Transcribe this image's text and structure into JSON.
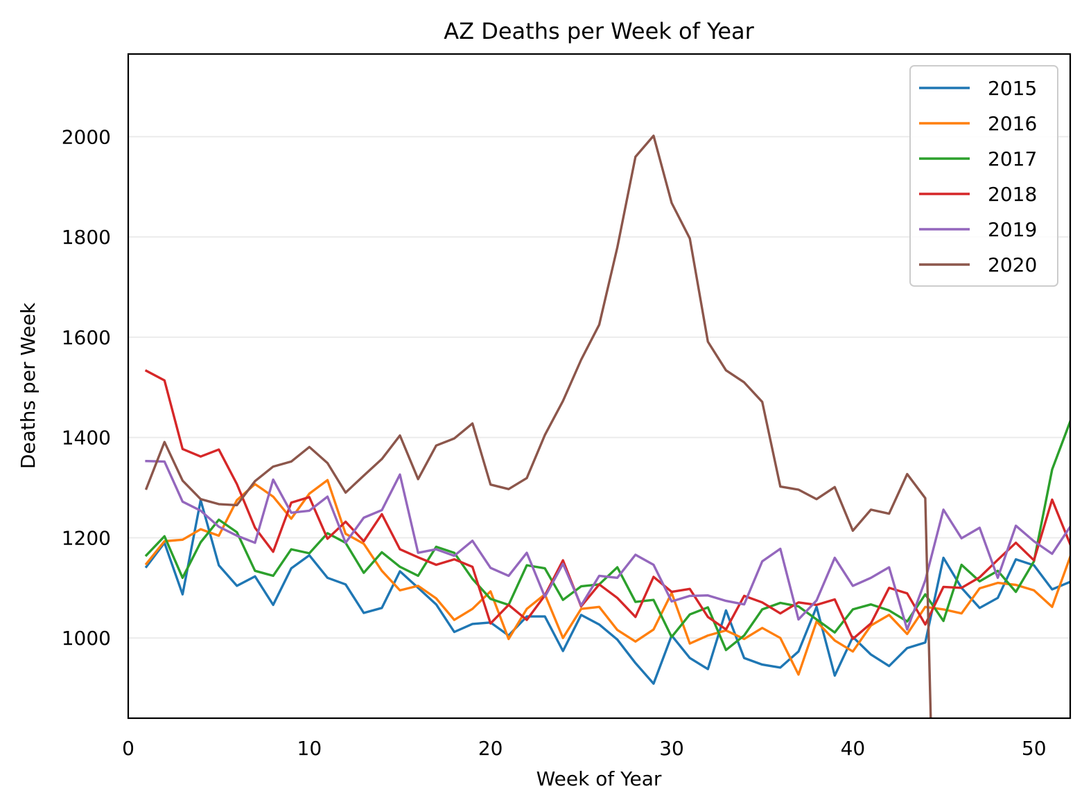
{
  "chart_data": {
    "type": "line",
    "title": "AZ Deaths per Week of Year",
    "xlabel": "Week of Year",
    "ylabel": "Deaths per Week",
    "xlim": [
      0,
      52
    ],
    "ylim": [
      840,
      2165
    ],
    "xticks": [
      0,
      10,
      20,
      30,
      40,
      50
    ],
    "yticks": [
      1000,
      1200,
      1400,
      1600,
      1800,
      2000
    ],
    "grid": "horizontal",
    "legend_position": "top-right",
    "series": [
      {
        "name": "2015",
        "color": "#1f77b4",
        "x": [
          1,
          2,
          3,
          4,
          5,
          6,
          7,
          8,
          9,
          10,
          11,
          12,
          13,
          14,
          15,
          16,
          17,
          18,
          19,
          20,
          21,
          22,
          23,
          24,
          25,
          26,
          27,
          28,
          29,
          30,
          31,
          32,
          33,
          34,
          35,
          36,
          37,
          38,
          39,
          40,
          41,
          42,
          43,
          44,
          45,
          46,
          47,
          48,
          49,
          50,
          51,
          52
        ],
        "values": [
          1142,
          1190,
          1087,
          1275,
          1145,
          1104,
          1123,
          1066,
          1139,
          1165,
          1120,
          1107,
          1050,
          1060,
          1133,
          1100,
          1067,
          1012,
          1028,
          1031,
          1005,
          1043,
          1043,
          974,
          1046,
          1027,
          997,
          950,
          909,
          1005,
          960,
          938,
          1055,
          960,
          947,
          941,
          973,
          1062,
          925,
          1002,
          967,
          944,
          980,
          991,
          1160,
          1100,
          1060,
          1080,
          1157,
          1145,
          1097,
          1112
        ]
      },
      {
        "name": "2016",
        "color": "#ff7f0e",
        "x": [
          1,
          2,
          3,
          4,
          5,
          6,
          7,
          8,
          9,
          10,
          11,
          12,
          13,
          14,
          15,
          16,
          17,
          18,
          19,
          20,
          21,
          22,
          23,
          24,
          25,
          26,
          27,
          28,
          29,
          30,
          31,
          32,
          33,
          34,
          35,
          36,
          37,
          38,
          39,
          40,
          41,
          42,
          43,
          44,
          45,
          46,
          47,
          48,
          49,
          50,
          51,
          52
        ],
        "values": [
          1148,
          1193,
          1196,
          1217,
          1204,
          1275,
          1307,
          1282,
          1238,
          1288,
          1315,
          1208,
          1188,
          1134,
          1095,
          1104,
          1079,
          1036,
          1058,
          1093,
          998,
          1058,
          1087,
          1000,
          1058,
          1062,
          1016,
          993,
          1017,
          1090,
          989,
          1005,
          1015,
          998,
          1020,
          1000,
          927,
          1033,
          995,
          973,
          1025,
          1046,
          1008,
          1062,
          1057,
          1049,
          1099,
          1110,
          1106,
          1095,
          1062,
          1162
        ]
      },
      {
        "name": "2017",
        "color": "#2ca02c",
        "x": [
          1,
          2,
          3,
          4,
          5,
          6,
          7,
          8,
          9,
          10,
          11,
          12,
          13,
          14,
          15,
          16,
          17,
          18,
          19,
          20,
          21,
          22,
          23,
          24,
          25,
          26,
          27,
          28,
          29,
          30,
          31,
          32,
          33,
          34,
          35,
          36,
          37,
          38,
          39,
          40,
          41,
          42,
          43,
          44,
          45,
          46,
          47,
          48,
          49,
          50,
          51,
          52
        ],
        "values": [
          1165,
          1203,
          1120,
          1191,
          1236,
          1211,
          1134,
          1124,
          1177,
          1169,
          1209,
          1190,
          1130,
          1171,
          1142,
          1124,
          1182,
          1170,
          1118,
          1078,
          1066,
          1145,
          1139,
          1076,
          1103,
          1107,
          1141,
          1072,
          1076,
          1002,
          1047,
          1061,
          976,
          1005,
          1057,
          1070,
          1063,
          1037,
          1011,
          1057,
          1067,
          1055,
          1033,
          1087,
          1034,
          1146,
          1113,
          1134,
          1092,
          1153,
          1336,
          1432
        ]
      },
      {
        "name": "2018",
        "color": "#d62728",
        "x": [
          1,
          2,
          3,
          4,
          5,
          6,
          7,
          8,
          9,
          10,
          11,
          12,
          13,
          14,
          15,
          16,
          17,
          18,
          19,
          20,
          21,
          22,
          23,
          24,
          25,
          26,
          27,
          28,
          29,
          30,
          31,
          32,
          33,
          34,
          35,
          36,
          37,
          38,
          39,
          40,
          41,
          42,
          43,
          44,
          45,
          46,
          47,
          48,
          49,
          50,
          51,
          52
        ],
        "values": [
          1533,
          1514,
          1377,
          1362,
          1376,
          1307,
          1220,
          1172,
          1270,
          1281,
          1198,
          1232,
          1193,
          1247,
          1177,
          1161,
          1146,
          1157,
          1142,
          1029,
          1066,
          1036,
          1085,
          1155,
          1063,
          1107,
          1080,
          1042,
          1122,
          1092,
          1098,
          1042,
          1017,
          1084,
          1071,
          1049,
          1071,
          1066,
          1077,
          998,
          1029,
          1100,
          1089,
          1027,
          1102,
          1100,
          1121,
          1156,
          1190,
          1155,
          1276,
          1187
        ]
      },
      {
        "name": "2019",
        "color": "#9467bd",
        "x": [
          1,
          2,
          3,
          4,
          5,
          6,
          7,
          8,
          9,
          10,
          11,
          12,
          13,
          14,
          15,
          16,
          17,
          18,
          19,
          20,
          21,
          22,
          23,
          24,
          25,
          26,
          27,
          28,
          29,
          30,
          31,
          32,
          33,
          34,
          35,
          36,
          37,
          38,
          39,
          40,
          41,
          42,
          43,
          44,
          45,
          46,
          47,
          48,
          49,
          50,
          51,
          52
        ],
        "values": [
          1353,
          1352,
          1272,
          1254,
          1222,
          1204,
          1190,
          1316,
          1250,
          1254,
          1282,
          1190,
          1240,
          1255,
          1326,
          1170,
          1177,
          1164,
          1194,
          1140,
          1124,
          1170,
          1082,
          1148,
          1065,
          1124,
          1120,
          1166,
          1146,
          1073,
          1084,
          1085,
          1074,
          1067,
          1153,
          1178,
          1037,
          1075,
          1160,
          1104,
          1120,
          1141,
          1017,
          1115,
          1256,
          1199,
          1220,
          1120,
          1224,
          1193,
          1168,
          1222
        ]
      },
      {
        "name": "2020",
        "color": "#8c564b",
        "x": [
          1,
          2,
          3,
          4,
          5,
          6,
          7,
          8,
          9,
          10,
          11,
          12,
          13,
          14,
          15,
          16,
          17,
          18,
          19,
          20,
          21,
          22,
          23,
          24,
          25,
          26,
          27,
          28,
          29,
          30,
          31,
          32,
          33,
          34,
          35,
          36,
          37,
          38,
          39,
          40,
          41,
          42,
          43,
          44,
          44.3
        ],
        "values": [
          1298,
          1391,
          1314,
          1277,
          1267,
          1265,
          1313,
          1342,
          1352,
          1381,
          1349,
          1290,
          1324,
          1357,
          1404,
          1317,
          1384,
          1398,
          1428,
          1306,
          1297,
          1319,
          1405,
          1473,
          1555,
          1625,
          1779,
          1960,
          2002,
          1868,
          1797,
          1591,
          1534,
          1510,
          1471,
          1302,
          1296,
          1277,
          1301,
          1214,
          1256,
          1248,
          1327,
          1279,
          840
        ]
      }
    ]
  }
}
